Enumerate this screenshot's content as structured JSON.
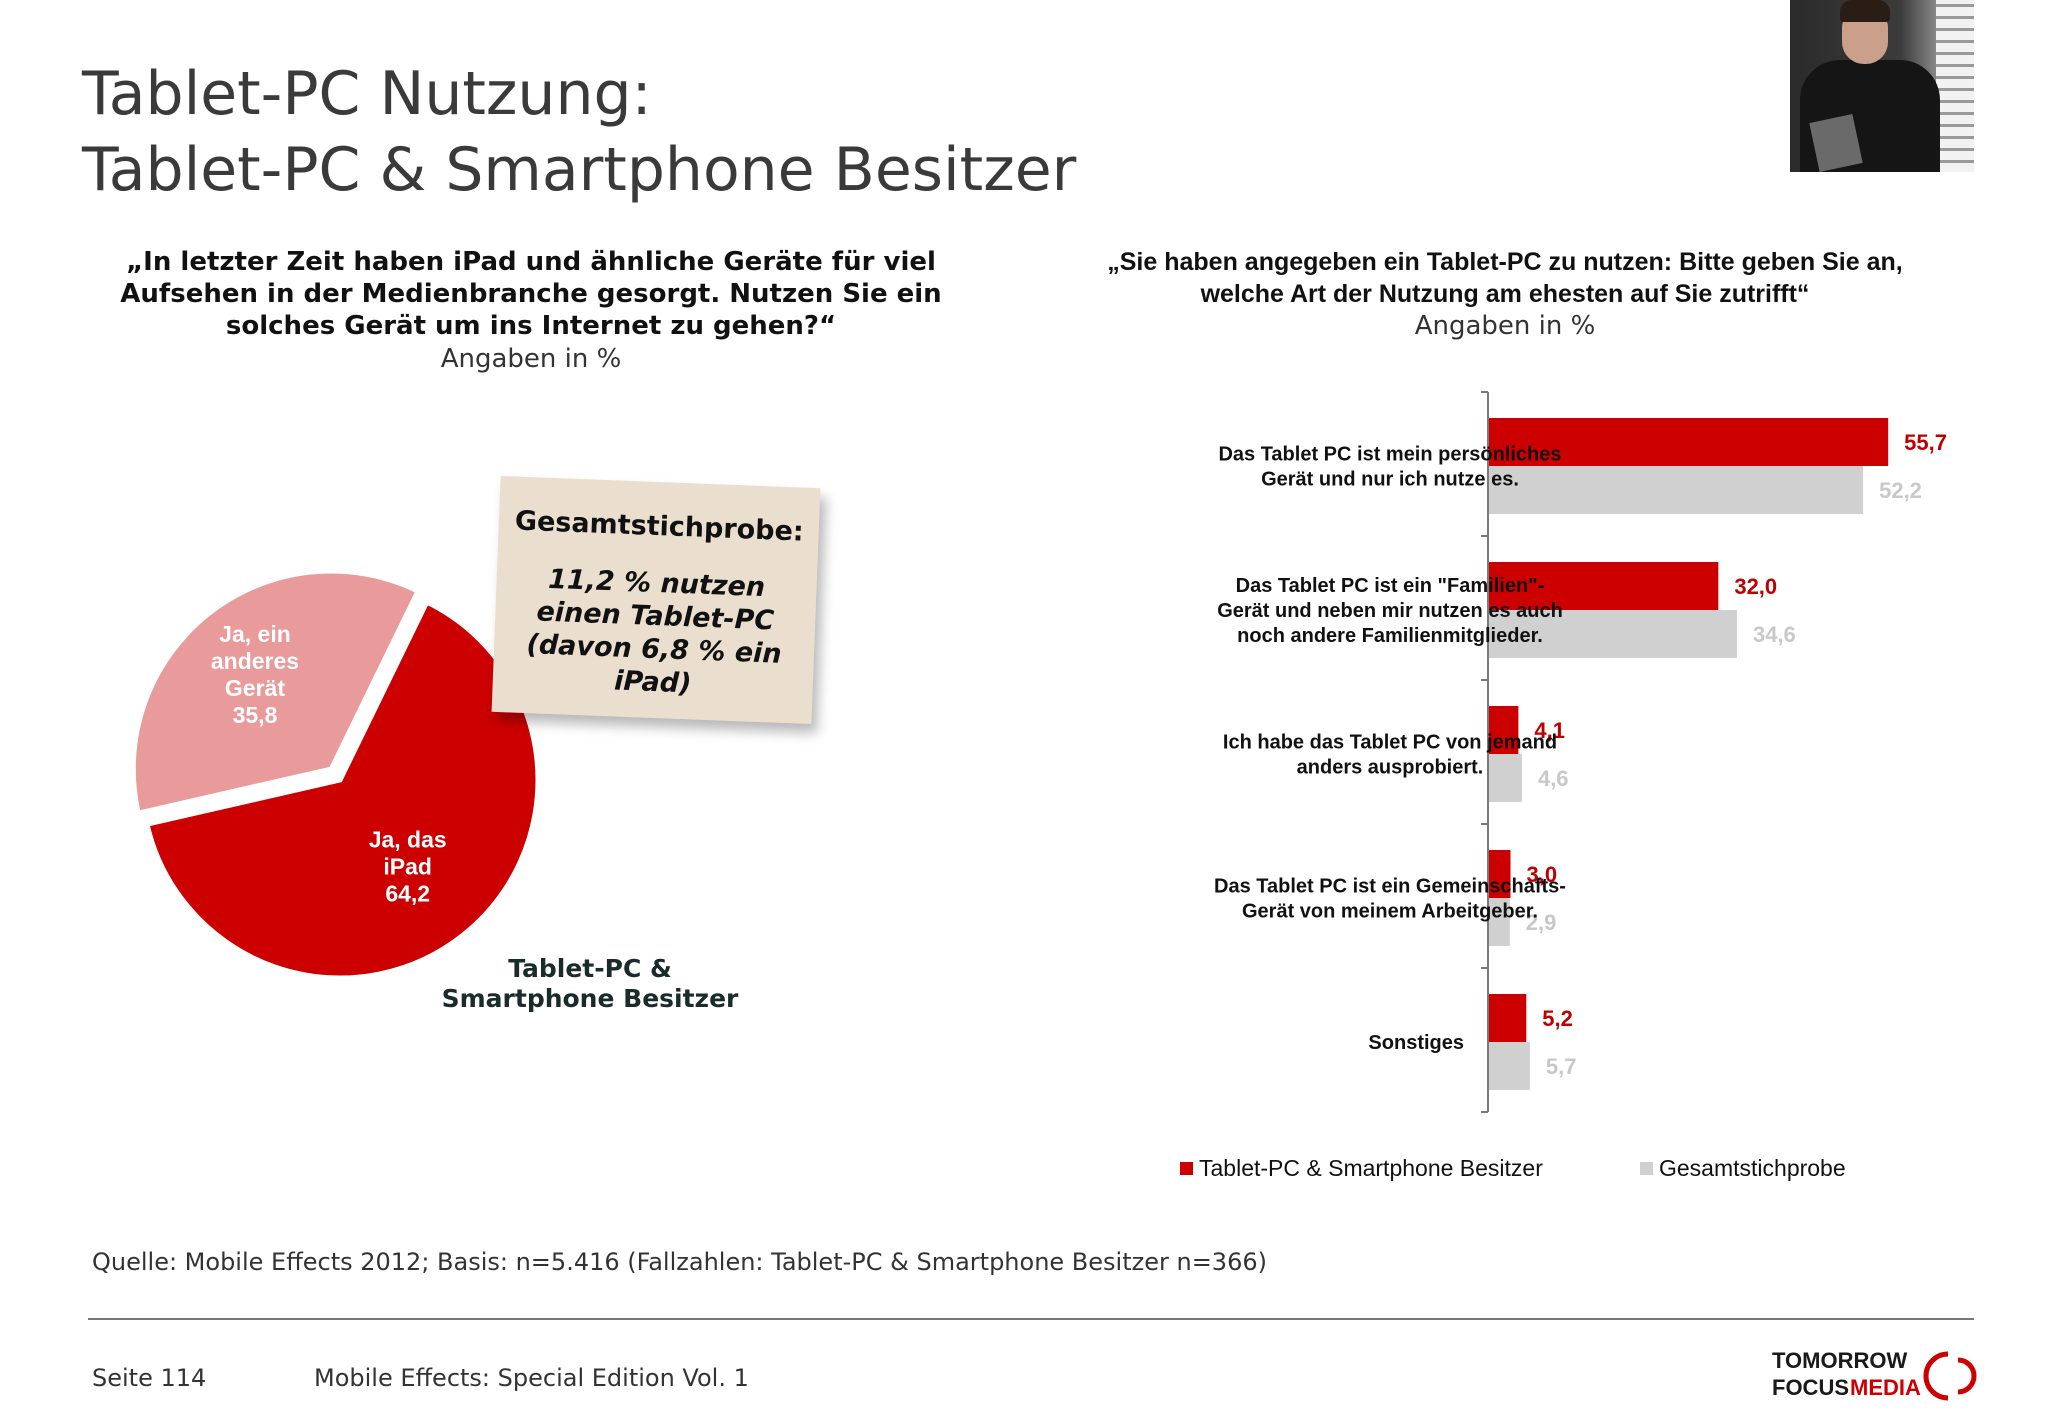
{
  "header": {
    "title_line1": "Tablet-PC Nutzung:",
    "title_line2": "Tablet-PC & Smartphone Besitzer"
  },
  "left": {
    "question": "„In letzter Zeit haben iPad und ähnliche Geräte für viel Aufsehen in der Medienbranche gesorgt. Nutzen Sie ein solches Gerät um ins Internet zu gehen?“",
    "unit": "Angaben in %",
    "note_head": "Gesamtstichprobe:",
    "note_body": "11,2 % nutzen einen Tablet-PC (davon 6,8 % ein iPad)",
    "caption": "Tablet-PC & Smartphone Besitzer"
  },
  "right": {
    "question": "„Sie haben angegeben ein Tablet-PC zu nutzen: Bitte geben Sie an, welche Art der Nutzung am ehesten auf Sie zutrifft“",
    "unit": "Angaben in %"
  },
  "chart_data": [
    {
      "type": "pie",
      "slices": [
        {
          "label_lines": [
            "Ja, das",
            "iPad",
            "64,2"
          ],
          "value": 64.2,
          "color": "#cc0000"
        },
        {
          "label_lines": [
            "Ja, ein",
            "anderes",
            "Gerät",
            "35,8"
          ],
          "value": 35.8,
          "color": "#e99a9a"
        }
      ]
    },
    {
      "type": "bar",
      "orientation": "horizontal",
      "categories": [
        [
          "Das Tablet PC ist mein persönliches",
          "Gerät und nur ich nutze es."
        ],
        [
          "Das Tablet PC ist ein \"Familien\"-",
          "Gerät und neben mir nutzen es auch",
          "noch andere Familienmitglieder."
        ],
        [
          "Ich habe das Tablet PC von jemand",
          "anders ausprobiert."
        ],
        [
          "Das Tablet PC ist ein Gemeinschafts-",
          "Gerät von meinem Arbeitgeber."
        ],
        [
          "Sonstiges"
        ]
      ],
      "series": [
        {
          "name": "Tablet-PC & Smartphone Besitzer",
          "color": "#cc0000",
          "values": [
            55.7,
            32.0,
            4.1,
            3.0,
            5.2
          ],
          "labels": [
            "55,7",
            "32,0",
            "4,1",
            "3,0",
            "5,2"
          ]
        },
        {
          "name": "Gesamtstichprobe",
          "color": "#d0d0d0",
          "values": [
            52.2,
            34.6,
            4.6,
            2.9,
            5.7
          ],
          "labels": [
            "52,2",
            "34,6",
            "4,6",
            "2,9",
            "5,7"
          ]
        }
      ],
      "xlim": [
        0,
        60
      ],
      "legend": "bottom"
    }
  ],
  "footer": {
    "source": "Quelle: Mobile Effects 2012; Basis: n=5.416 (Fallzahlen: Tablet-PC & Smartphone Besitzer n=366)",
    "page": "Seite 114",
    "edition": "Mobile Effects: Special Edition Vol. 1",
    "logo_line1": "TOMORROW",
    "logo_line2a": "FOCUS",
    "logo_line2b": "MEDIA"
  }
}
